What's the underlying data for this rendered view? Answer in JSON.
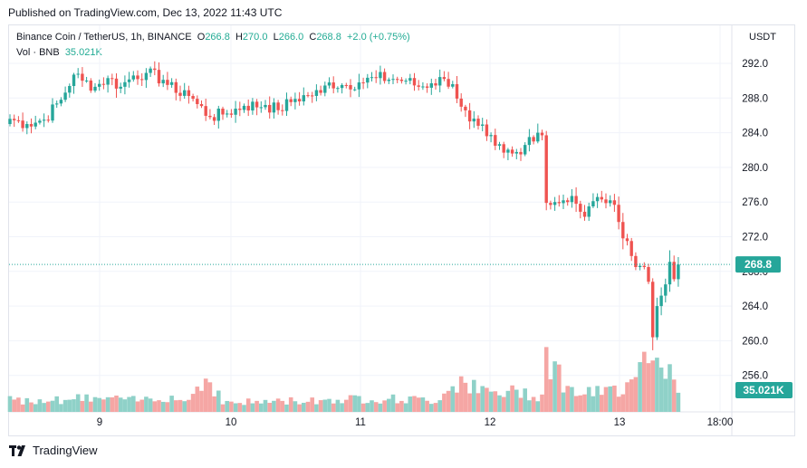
{
  "header": {
    "published": "Published on TradingView.com, Dec 13, 2022 11:43 UTC"
  },
  "legend": {
    "symbol": "Binance Coin / TetherUS, 1h, BINANCE",
    "o_label": "O",
    "o_value": "266.8",
    "h_label": "H",
    "h_value": "270.0",
    "l_label": "L",
    "l_value": "266.0",
    "c_label": "C",
    "c_value": "268.8",
    "change": "+2.0 (+0.75%)",
    "vol_label": "Vol · BNB",
    "vol_value": "35.021K"
  },
  "price_axis": {
    "currency": "USDT",
    "price_tag": "268.8",
    "volume_tag": "35.021K"
  },
  "footer": {
    "brand": "TradingView"
  },
  "colors": {
    "up": "#26a69a",
    "down": "#ef5350",
    "up_vol": "#8fd1c8",
    "down_vol": "#f5a6a4",
    "price_line": "#26a69a",
    "grid": "#f0f3fa"
  },
  "chart_data": {
    "type": "candlestick",
    "y_ticks": [
      "292.0",
      "288.0",
      "284.0",
      "280.0",
      "276.0",
      "272.0",
      "268.0",
      "264.0",
      "260.0",
      "256.0"
    ],
    "ylim": [
      252.0,
      296.0
    ],
    "x_ticks": [
      "9",
      "10",
      "11",
      "12",
      "13",
      "18:00"
    ],
    "last_price": 268.8,
    "anchors": [
      [
        0,
        285.6
      ],
      [
        4,
        285.0
      ],
      [
        8,
        285.5
      ],
      [
        12,
        287.8
      ],
      [
        15,
        290.7
      ],
      [
        17,
        290.0
      ],
      [
        20,
        289.3
      ],
      [
        23,
        290.3
      ],
      [
        26,
        289.3
      ],
      [
        29,
        290.6
      ],
      [
        32,
        290.9
      ],
      [
        36,
        290.1
      ],
      [
        39,
        288.6
      ],
      [
        41,
        288.9
      ],
      [
        44,
        287.3
      ],
      [
        47,
        285.8
      ],
      [
        50,
        286.1
      ],
      [
        55,
        287.1
      ],
      [
        60,
        287.2
      ],
      [
        63,
        286.6
      ],
      [
        67,
        287.9
      ],
      [
        70,
        288.3
      ],
      [
        73,
        288.6
      ],
      [
        75,
        289.8
      ],
      [
        78,
        289.5
      ],
      [
        82,
        289.8
      ],
      [
        86,
        290.3
      ],
      [
        90,
        290.2
      ],
      [
        93,
        290.0
      ],
      [
        96,
        289.3
      ],
      [
        99,
        289.7
      ],
      [
        102,
        290.2
      ],
      [
        104,
        289.6
      ],
      [
        106,
        287.0
      ],
      [
        108,
        285.3
      ],
      [
        110,
        284.8
      ],
      [
        112,
        283.6
      ],
      [
        114,
        282.5
      ],
      [
        116,
        281.7
      ],
      [
        118,
        281.6
      ],
      [
        120,
        281.5
      ],
      [
        122,
        283.5
      ],
      [
        124,
        284.0
      ],
      [
        125,
        283.7
      ],
      [
        126,
        275.9
      ],
      [
        128,
        276.0
      ],
      [
        130,
        276.2
      ],
      [
        132,
        276.7
      ],
      [
        133,
        275.8
      ],
      [
        135,
        274.3
      ],
      [
        137,
        276.1
      ],
      [
        139,
        276.3
      ],
      [
        141,
        276.2
      ],
      [
        143,
        273.7
      ],
      [
        145,
        271.5
      ],
      [
        147,
        268.5
      ],
      [
        149,
        268.5
      ],
      [
        150,
        266.8
      ],
      [
        151,
        260.4
      ],
      [
        152,
        264.0
      ],
      [
        153,
        265.2
      ],
      [
        154,
        266.5
      ],
      [
        155,
        269.1
      ],
      [
        156,
        267.1
      ],
      [
        157,
        268.8
      ]
    ],
    "volume_profile": [
      [
        0,
        0.1
      ],
      [
        20,
        0.12
      ],
      [
        30,
        0.1
      ],
      [
        36,
        0.14
      ],
      [
        42,
        0.1
      ],
      [
        45,
        0.28
      ],
      [
        47,
        0.28
      ],
      [
        50,
        0.08
      ],
      [
        70,
        0.1
      ],
      [
        85,
        0.12
      ],
      [
        100,
        0.1
      ],
      [
        106,
        0.3
      ],
      [
        110,
        0.18
      ],
      [
        115,
        0.16
      ],
      [
        120,
        0.18
      ],
      [
        125,
        0.14
      ],
      [
        126,
        0.58
      ],
      [
        127,
        0.45
      ],
      [
        129,
        0.32
      ],
      [
        132,
        0.18
      ],
      [
        137,
        0.16
      ],
      [
        141,
        0.18
      ],
      [
        144,
        0.22
      ],
      [
        147,
        0.42
      ],
      [
        149,
        0.46
      ],
      [
        150,
        0.58
      ],
      [
        151,
        0.52
      ],
      [
        152,
        0.44
      ],
      [
        154,
        0.4
      ],
      [
        155,
        0.52
      ],
      [
        156,
        0.4
      ],
      [
        157,
        0.22
      ]
    ]
  }
}
